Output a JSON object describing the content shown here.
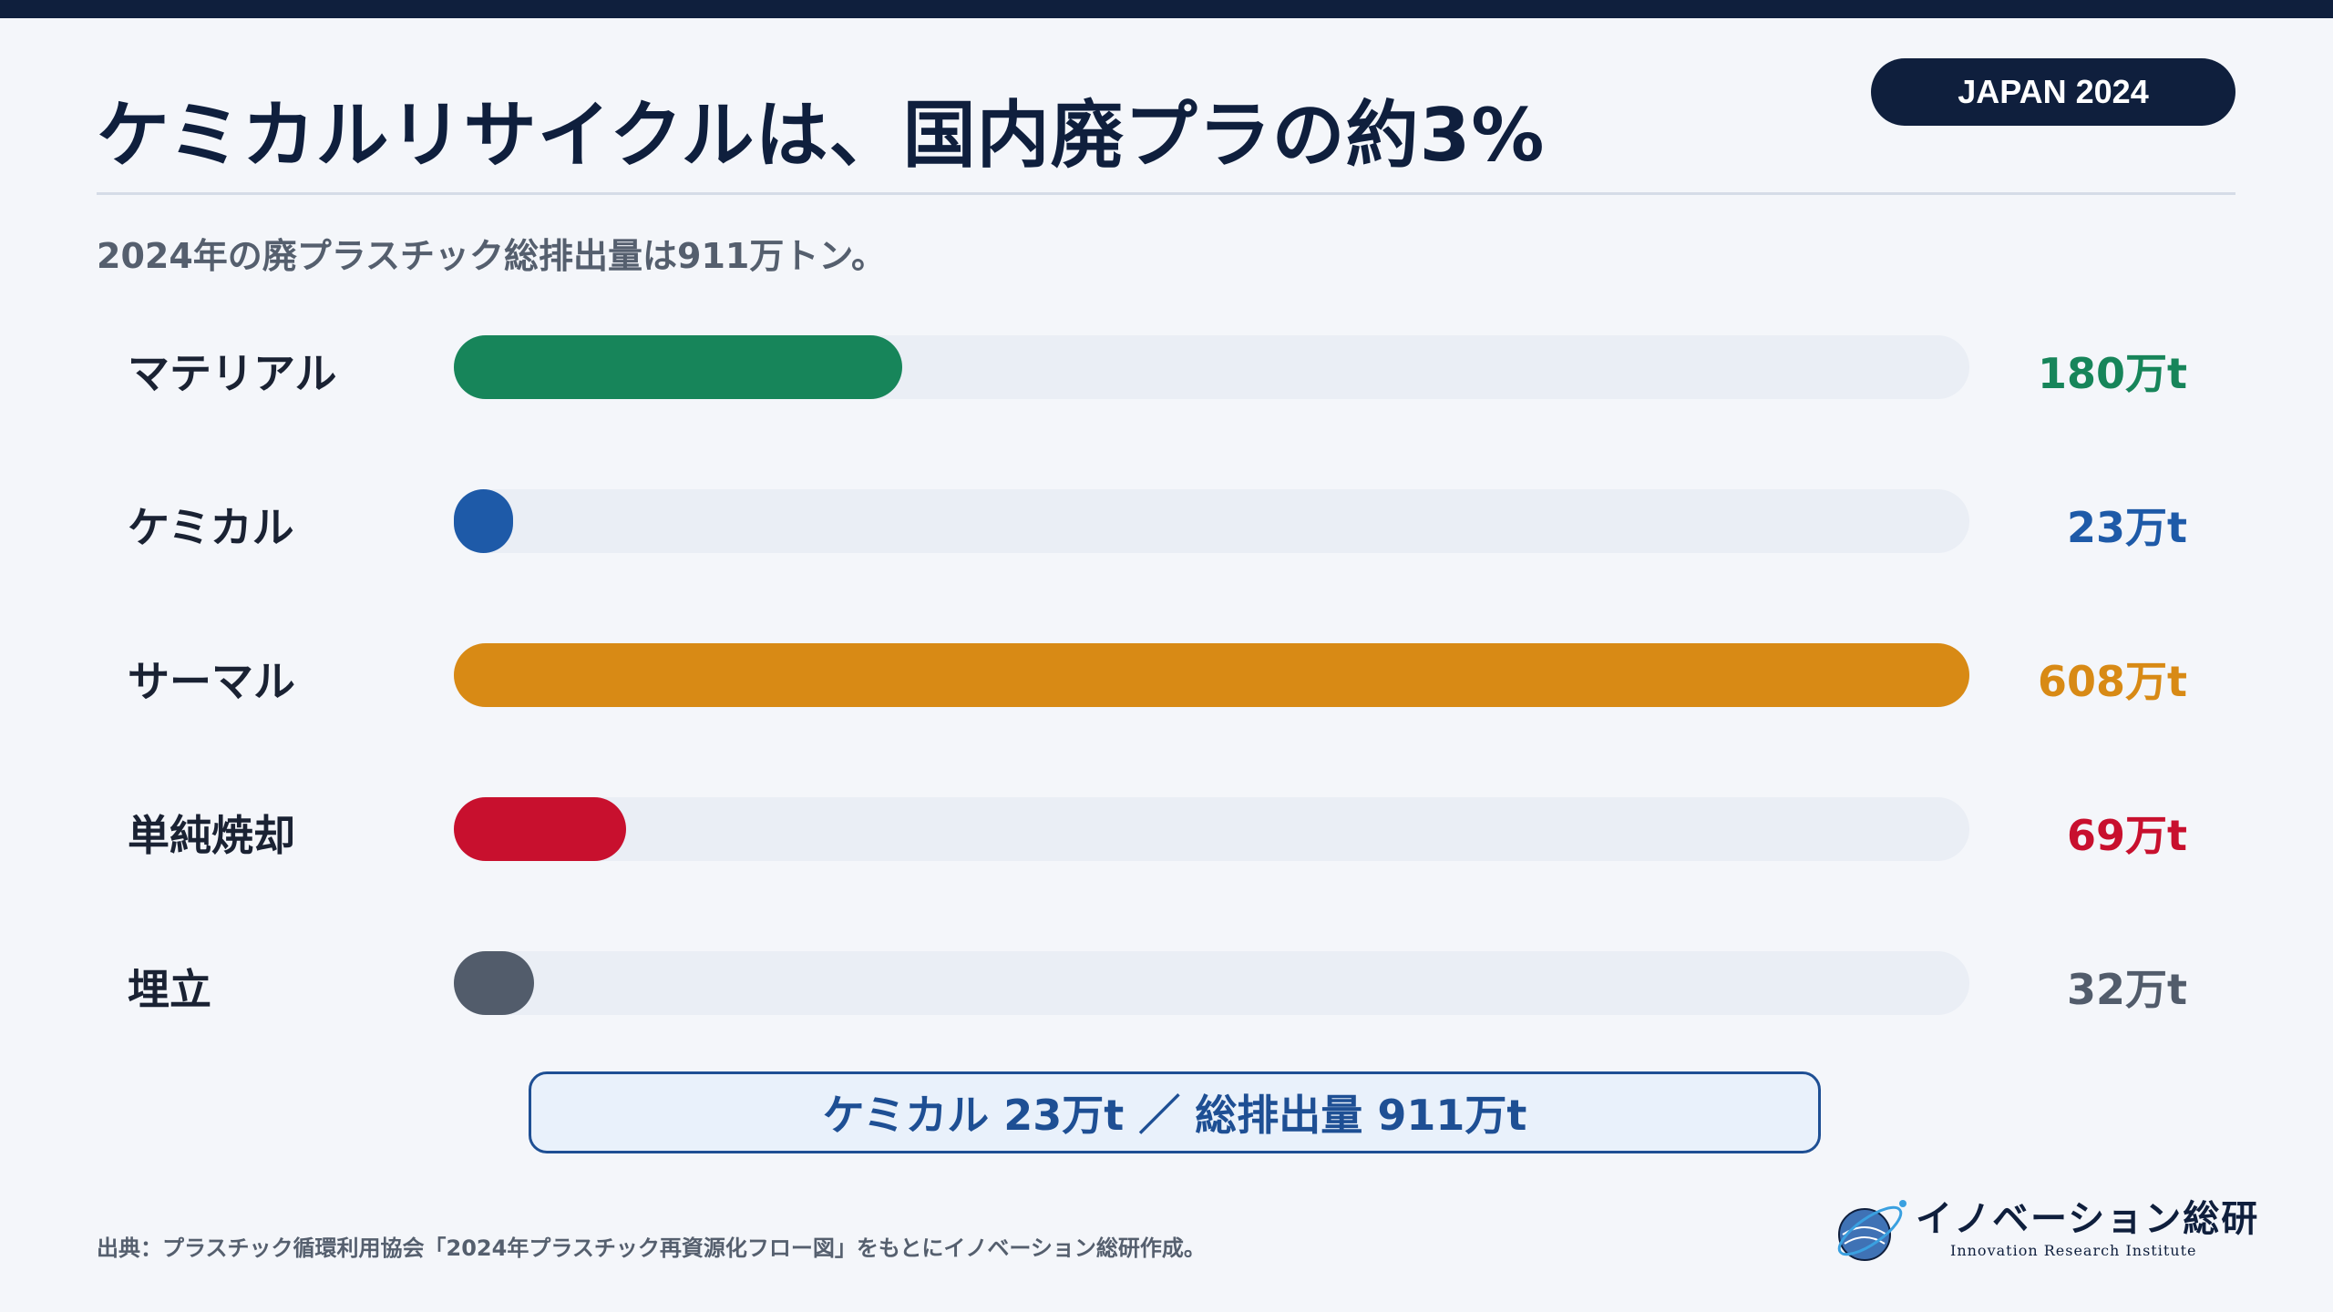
{
  "header": {
    "title": "ケミカルリサイクルは、国内廃プラの約3%",
    "badge": "JAPAN 2024",
    "subtitle": "2024年の廃プラスチック総排出量は911万トン。"
  },
  "colors": {
    "navy": "#0f1f3d",
    "material": "#17855a",
    "chemical": "#1e5aa8",
    "thermal": "#d88a15",
    "incineration": "#c8102e",
    "landfill": "#525c6b"
  },
  "chart_data": {
    "type": "bar",
    "orientation": "horizontal",
    "categories": [
      "マテリアル",
      "ケミカル",
      "サーマル",
      "単純焼却",
      "埋立"
    ],
    "values": [
      180,
      23,
      608,
      69,
      32
    ],
    "value_labels": [
      "180万t",
      "23万t",
      "608万t",
      "69万t",
      "32万t"
    ],
    "colors": [
      "#17855a",
      "#1e5aa8",
      "#d88a15",
      "#c8102e",
      "#525c6b"
    ],
    "xlim": [
      0,
      608
    ],
    "grid": false
  },
  "summary": {
    "text": "ケミカル 23万t ／ 総排出量 911万t"
  },
  "footer": {
    "source": "出典：プラスチック循環利用協会「2024年プラスチック再資源化フロー図」をもとにイノベーション総研作成。",
    "logo_name": "イノベーション総研",
    "logo_sub": "Innovation Research Institute",
    "logo_icon": "globe-orbit-icon"
  }
}
